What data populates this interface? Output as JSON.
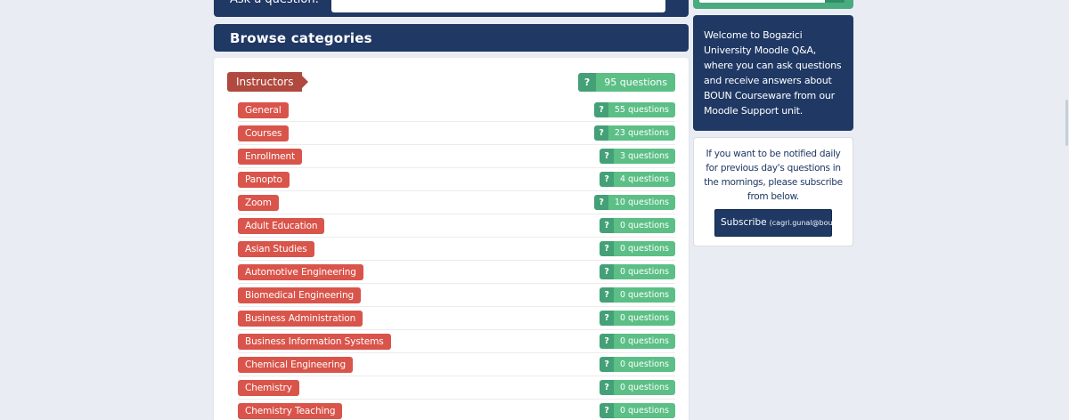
{
  "ask_section": {
    "label": "Ask a question:",
    "input_value": ""
  },
  "browse": {
    "title": "Browse categories"
  },
  "categories": {
    "badge_icon": "?",
    "parent": {
      "label": "Instructors",
      "count_label": "95 questions"
    },
    "children": [
      {
        "label": "General",
        "count_label": "55 questions"
      },
      {
        "label": "Courses",
        "count_label": "23 questions"
      },
      {
        "label": "Enrollment",
        "count_label": "3 questions"
      },
      {
        "label": "Panopto",
        "count_label": "4 questions"
      },
      {
        "label": "Zoom",
        "count_label": "10 questions"
      },
      {
        "label": "Adult Education",
        "count_label": "0 questions"
      },
      {
        "label": "Asian Studies",
        "count_label": "0 questions"
      },
      {
        "label": "Automotive Engineering",
        "count_label": "0 questions"
      },
      {
        "label": "Biomedical Engineering",
        "count_label": "0 questions"
      },
      {
        "label": "Business Administration",
        "count_label": "0 questions"
      },
      {
        "label": "Business Information Systems",
        "count_label": "0 questions"
      },
      {
        "label": "Chemical Engineering",
        "count_label": "0 questions"
      },
      {
        "label": "Chemistry",
        "count_label": "0 questions"
      },
      {
        "label": "Chemistry Teaching",
        "count_label": "0 questions"
      }
    ]
  },
  "sidebar": {
    "search": {
      "input_value": ""
    },
    "welcome": {
      "lines": [
        "Welcome to Bogazici",
        "University Moodle Q&A,",
        "where you can ask questions",
        "and receive answers about",
        "BOUN Courseware from our",
        "Moodle Support unit."
      ]
    },
    "subscribe": {
      "lines": [
        "If you want to be notified daily",
        "for previous day's questions in",
        "the mornings, please subscribe",
        "from below."
      ],
      "button_label": "Subscribe",
      "button_email": "(cagri.gunal@boun.edu.tr)"
    }
  },
  "colors": {
    "navy": "#1f3864",
    "page_background": "#e9edf3",
    "parent_tag": "#b0493e",
    "child_tag": "#d9544a",
    "badge_question": "#43a077",
    "badge_count": "#5cbf86",
    "search_container": "#4aaa80",
    "search_button": "#2e8e63"
  }
}
